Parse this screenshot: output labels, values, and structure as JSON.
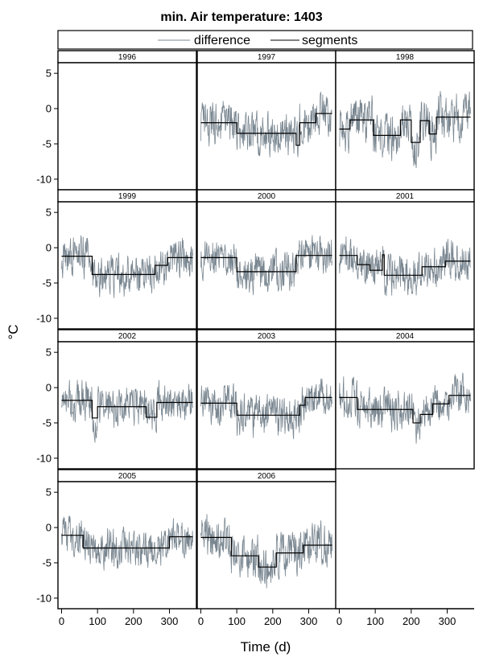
{
  "chart_data": {
    "type": "line",
    "title": "min. Air temperature: 1403",
    "xlabel": "Time (d)",
    "ylabel": "°C",
    "xlim": [
      -10,
      375
    ],
    "ylim": [
      -11.5,
      6.5
    ],
    "x_ticks": [
      0,
      100,
      200,
      300
    ],
    "y_ticks": [
      5,
      0,
      -5,
      -10
    ],
    "legend": {
      "position": "top",
      "entries": [
        {
          "label": "difference",
          "color": "#7a8791"
        },
        {
          "label": "segments",
          "color": "#000000"
        }
      ]
    },
    "colors": {
      "difference": "#7a8791",
      "segments": "#000000"
    },
    "panels": [
      {
        "year": "1996",
        "range": null,
        "difference_seed": 0,
        "difference_noise": 0,
        "segments": []
      },
      {
        "year": "1997",
        "range": [
          0,
          365
        ],
        "difference_seed": 11,
        "difference_noise": 2.6,
        "segments": [
          {
            "x0": 0,
            "x1": 100,
            "y": -2.0
          },
          {
            "x0": 100,
            "x1": 265,
            "y": -3.5
          },
          {
            "x0": 265,
            "x1": 275,
            "y": -5.2
          },
          {
            "x0": 275,
            "x1": 320,
            "y": -2.0
          },
          {
            "x0": 320,
            "x1": 365,
            "y": -0.7
          }
        ]
      },
      {
        "year": "1998",
        "range": [
          0,
          365
        ],
        "difference_seed": 12,
        "difference_noise": 2.8,
        "segments": [
          {
            "x0": 0,
            "x1": 30,
            "y": -2.9
          },
          {
            "x0": 30,
            "x1": 95,
            "y": -1.6
          },
          {
            "x0": 95,
            "x1": 170,
            "y": -3.8
          },
          {
            "x0": 170,
            "x1": 200,
            "y": -1.6
          },
          {
            "x0": 200,
            "x1": 225,
            "y": -4.8
          },
          {
            "x0": 225,
            "x1": 250,
            "y": -1.7
          },
          {
            "x0": 250,
            "x1": 270,
            "y": -3.6
          },
          {
            "x0": 270,
            "x1": 365,
            "y": -1.2
          }
        ]
      },
      {
        "year": "1999",
        "range": [
          0,
          365
        ],
        "difference_seed": 13,
        "difference_noise": 2.5,
        "segments": [
          {
            "x0": 0,
            "x1": 85,
            "y": -1.2
          },
          {
            "x0": 85,
            "x1": 260,
            "y": -3.8
          },
          {
            "x0": 260,
            "x1": 295,
            "y": -2.5
          },
          {
            "x0": 295,
            "x1": 365,
            "y": -1.4
          }
        ]
      },
      {
        "year": "2000",
        "range": [
          0,
          365
        ],
        "difference_seed": 14,
        "difference_noise": 2.4,
        "segments": [
          {
            "x0": 0,
            "x1": 100,
            "y": -1.4
          },
          {
            "x0": 100,
            "x1": 265,
            "y": -3.4
          },
          {
            "x0": 265,
            "x1": 365,
            "y": -1.1
          }
        ]
      },
      {
        "year": "2001",
        "range": [
          0,
          365
        ],
        "difference_seed": 15,
        "difference_noise": 2.5,
        "segments": [
          {
            "x0": 0,
            "x1": 50,
            "y": -1.1
          },
          {
            "x0": 50,
            "x1": 85,
            "y": -2.4
          },
          {
            "x0": 85,
            "x1": 120,
            "y": -3.2
          },
          {
            "x0": 120,
            "x1": 125,
            "y": -1.0
          },
          {
            "x0": 125,
            "x1": 230,
            "y": -3.9
          },
          {
            "x0": 230,
            "x1": 295,
            "y": -2.7
          },
          {
            "x0": 295,
            "x1": 365,
            "y": -1.9
          }
        ]
      },
      {
        "year": "2002",
        "range": [
          0,
          365
        ],
        "difference_seed": 16,
        "difference_noise": 2.5,
        "segments": [
          {
            "x0": 0,
            "x1": 85,
            "y": -1.8
          },
          {
            "x0": 85,
            "x1": 100,
            "y": -4.3
          },
          {
            "x0": 100,
            "x1": 235,
            "y": -2.7
          },
          {
            "x0": 235,
            "x1": 265,
            "y": -4.2
          },
          {
            "x0": 265,
            "x1": 365,
            "y": -2.1
          }
        ]
      },
      {
        "year": "2003",
        "range": [
          0,
          365
        ],
        "difference_seed": 17,
        "difference_noise": 2.6,
        "segments": [
          {
            "x0": 0,
            "x1": 100,
            "y": -2.2
          },
          {
            "x0": 100,
            "x1": 275,
            "y": -3.9
          },
          {
            "x0": 275,
            "x1": 290,
            "y": -2.5
          },
          {
            "x0": 290,
            "x1": 365,
            "y": -1.4
          }
        ]
      },
      {
        "year": "2004",
        "range": [
          0,
          365
        ],
        "difference_seed": 18,
        "difference_noise": 2.5,
        "segments": [
          {
            "x0": 0,
            "x1": 50,
            "y": -1.4
          },
          {
            "x0": 50,
            "x1": 205,
            "y": -3.1
          },
          {
            "x0": 205,
            "x1": 225,
            "y": -5.0
          },
          {
            "x0": 225,
            "x1": 260,
            "y": -3.8
          },
          {
            "x0": 260,
            "x1": 305,
            "y": -2.3
          },
          {
            "x0": 305,
            "x1": 365,
            "y": -1.1
          }
        ]
      },
      {
        "year": "2005",
        "range": [
          0,
          365
        ],
        "difference_seed": 19,
        "difference_noise": 2.4,
        "segments": [
          {
            "x0": 0,
            "x1": 60,
            "y": -1.1
          },
          {
            "x0": 60,
            "x1": 300,
            "y": -2.9
          },
          {
            "x0": 300,
            "x1": 365,
            "y": -1.3
          }
        ]
      },
      {
        "year": "2006",
        "range": [
          0,
          365
        ],
        "difference_seed": 20,
        "difference_noise": 2.6,
        "segments": [
          {
            "x0": 0,
            "x1": 85,
            "y": -1.4
          },
          {
            "x0": 85,
            "x1": 160,
            "y": -4.0
          },
          {
            "x0": 160,
            "x1": 210,
            "y": -5.6
          },
          {
            "x0": 210,
            "x1": 285,
            "y": -3.6
          },
          {
            "x0": 285,
            "x1": 365,
            "y": -2.5
          }
        ]
      }
    ]
  }
}
